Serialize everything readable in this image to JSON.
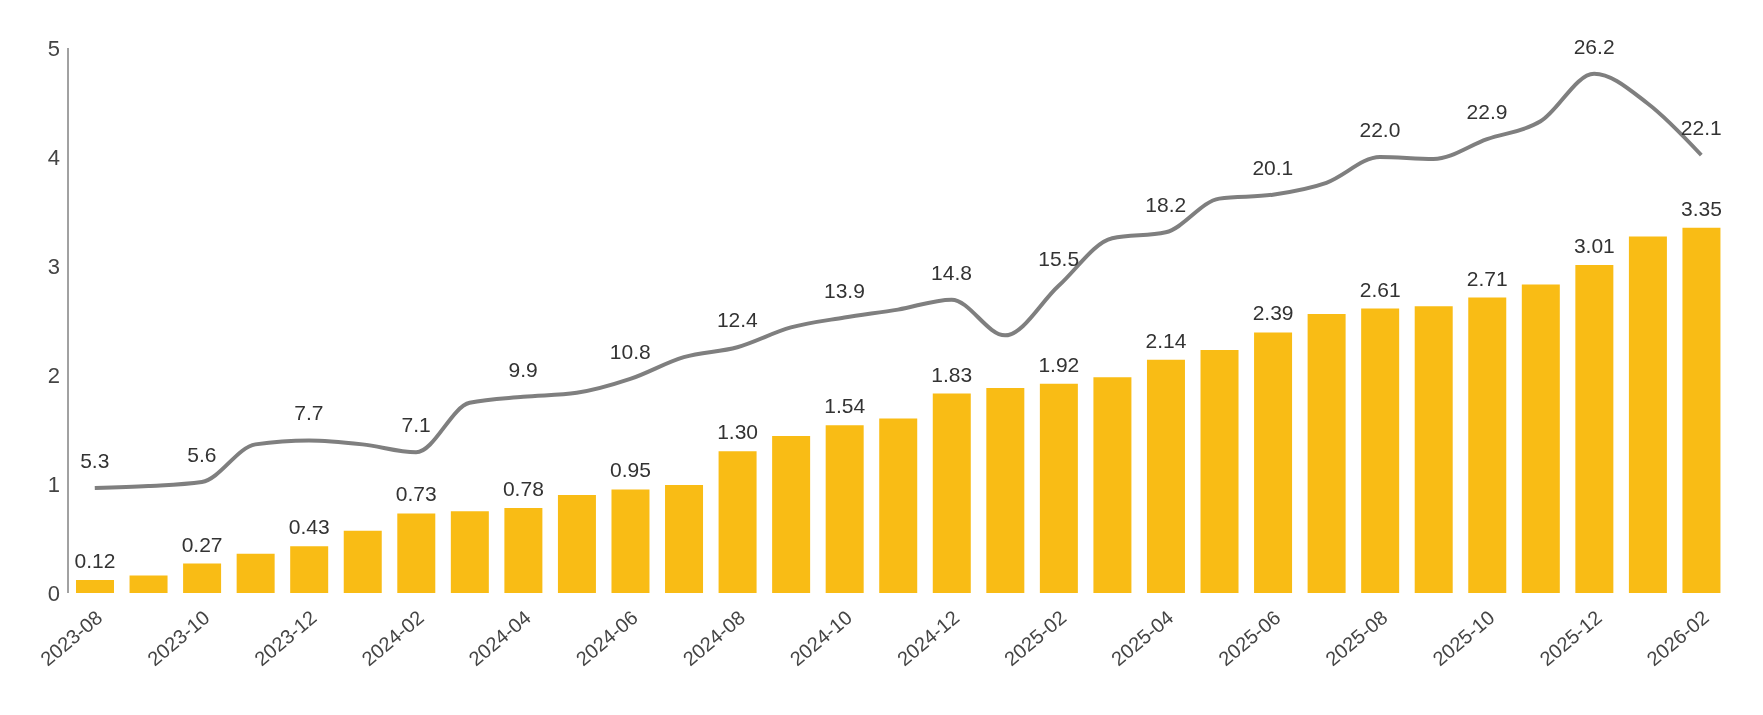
{
  "chart_data": {
    "type": "bar",
    "categories": [
      "2023-08",
      null,
      "2023-10",
      null,
      "2023-12",
      null,
      "2024-02",
      null,
      "2024-04",
      null,
      "2024-06",
      null,
      "2024-08",
      null,
      "2024-10",
      null,
      "2024-12",
      null,
      "2025-02",
      null,
      "2025-04",
      null,
      "2025-06",
      null,
      "2025-08",
      null,
      "2025-10",
      null,
      "2025-12",
      null,
      "2026-02"
    ],
    "series": [
      {
        "color": "#f9bc15",
        "values": [
          0.12,
          0.16,
          0.27,
          0.36,
          0.43,
          0.57,
          0.73,
          0.75,
          0.78,
          0.9,
          0.95,
          0.99,
          1.3,
          1.44,
          1.54,
          1.6,
          1.83,
          1.88,
          1.92,
          1.98,
          2.14,
          2.23,
          2.39,
          2.56,
          2.61,
          2.63,
          2.71,
          2.83,
          3.01,
          3.27,
          3.35
        ],
        "value_labels": [
          "0.12",
          null,
          "0.27",
          null,
          "0.43",
          null,
          "0.73",
          null,
          "0.78",
          null,
          "0.95",
          null,
          "1.30",
          null,
          "1.54",
          null,
          "1.83",
          null,
          "1.92",
          null,
          "2.14",
          null,
          "2.39",
          null,
          "2.61",
          null,
          "2.71",
          null,
          "3.01",
          null,
          "3.35"
        ]
      },
      {
        "type": "line",
        "axis": "y2",
        "color": "#7f7f7f",
        "values": [
          5.3,
          5.4,
          5.6,
          7.5,
          7.7,
          7.5,
          7.1,
          9.6,
          9.9,
          10.1,
          10.8,
          11.9,
          12.4,
          13.4,
          13.9,
          14.3,
          14.8,
          13.0,
          15.5,
          17.9,
          18.2,
          19.9,
          20.1,
          20.7,
          22.0,
          21.9,
          22.9,
          23.8,
          26.2,
          24.7,
          22.1
        ],
        "value_labels": [
          "5.3",
          null,
          "5.6",
          null,
          "7.7",
          null,
          "7.1",
          null,
          "9.9",
          null,
          "10.8",
          null,
          "12.4",
          null,
          "13.9",
          null,
          "14.8",
          null,
          "15.5",
          null,
          "18.2",
          null,
          "20.1",
          null,
          "22.0",
          null,
          "22.9",
          null,
          "26.2",
          null,
          "22.1"
        ]
      }
    ],
    "ylim": [
      0,
      5
    ],
    "yticks": [
      0,
      1,
      2,
      3,
      4,
      5
    ],
    "y2lim": [
      0,
      27.5
    ],
    "grid": false,
    "legend": false,
    "marker": "none",
    "line_style": "solid"
  }
}
